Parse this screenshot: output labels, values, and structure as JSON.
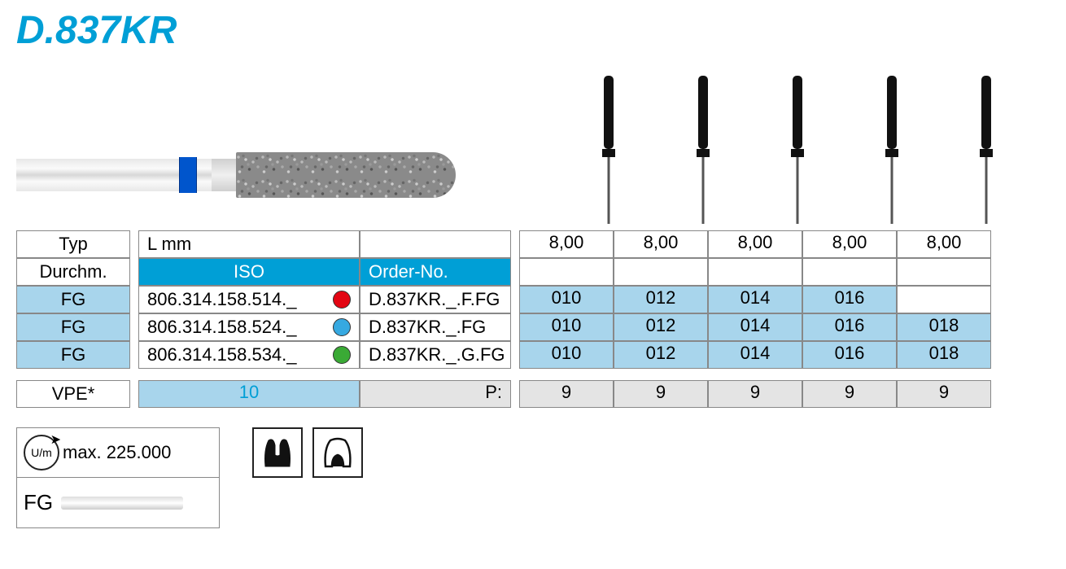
{
  "title": "D.837KR",
  "colors": {
    "accent_blue": "#009fd6",
    "light_blue": "#a8d5ec",
    "grey": "#e4e4e4",
    "dot_red": "#e30613",
    "dot_blue": "#36a9e1",
    "dot_green": "#3aaa35"
  },
  "headers": {
    "typ": "Typ",
    "durchm": "Durchm.",
    "lmm": "L mm",
    "iso": "ISO",
    "order": "Order-No."
  },
  "lengths": [
    "8,00",
    "8,00",
    "8,00",
    "8,00",
    "8,00"
  ],
  "rows": [
    {
      "typ": "FG",
      "iso": "806.314.158.514._",
      "dot_color": "#e30613",
      "order": "D.837KR._.F.FG",
      "sizes": [
        "010",
        "012",
        "014",
        "016",
        ""
      ]
    },
    {
      "typ": "FG",
      "iso": "806.314.158.524._",
      "dot_color": "#36a9e1",
      "order": "D.837KR._.FG",
      "sizes": [
        "010",
        "012",
        "014",
        "016",
        "018"
      ]
    },
    {
      "typ": "FG",
      "iso": "806.314.158.534._",
      "dot_color": "#3aaa35",
      "order": "D.837KR._.G.FG",
      "sizes": [
        "010",
        "012",
        "014",
        "016",
        "018"
      ]
    }
  ],
  "vpe": {
    "label": "VPE*",
    "qty": "10",
    "p_label": "P:",
    "values": [
      "9",
      "9",
      "9",
      "9",
      "9"
    ]
  },
  "rpm": {
    "symbol": "U/m",
    "label": "max. 225.000"
  },
  "shank_label": "FG",
  "silhouette_count": 5
}
